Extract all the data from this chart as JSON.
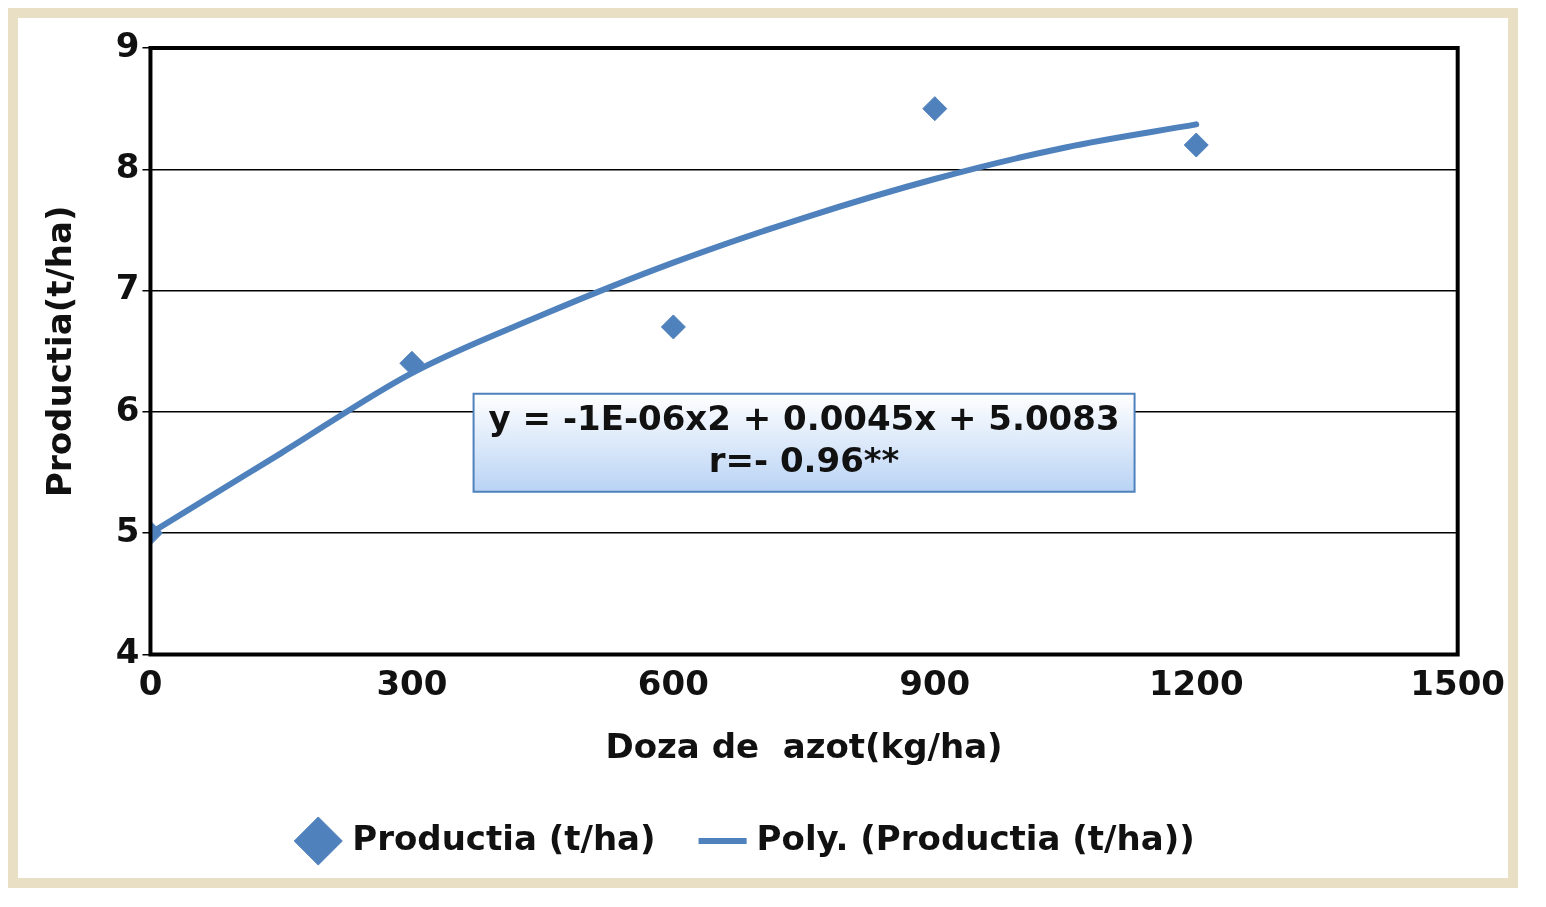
{
  "chart_data": {
    "type": "scatter",
    "xlabel": "Doza de  azot(kg/ha)",
    "ylabel": "Productia(t/ha)",
    "xlim": [
      0,
      1500
    ],
    "xticks": [
      0,
      300,
      600,
      900,
      1200,
      1500
    ],
    "ylim": [
      4,
      9
    ],
    "yticks": [
      4,
      5,
      6,
      7,
      8,
      9
    ],
    "grid": "y",
    "legend": "bottom",
    "series": [
      {
        "name": "Productia (t/ha)",
        "marker": "diamond",
        "color": "#4f81bd",
        "x": [
          0,
          300,
          600,
          900,
          1200
        ],
        "values": [
          5.0,
          6.4,
          6.7,
          8.5,
          8.2
        ]
      },
      {
        "name": "Poly. (Productia (t/ha))",
        "type": "line",
        "marker": "none",
        "line_style": "solid",
        "color": "#4f81bd",
        "x": [
          0,
          150,
          300,
          450,
          600,
          750,
          900,
          1050,
          1200
        ],
        "values": [
          5.0,
          5.66,
          6.32,
          6.8,
          7.23,
          7.6,
          7.92,
          8.18,
          8.37
        ]
      }
    ],
    "annotations": [
      "y = -1E-06x2 + 0.0045x + 5.0083",
      "r=- 0.96**"
    ]
  }
}
